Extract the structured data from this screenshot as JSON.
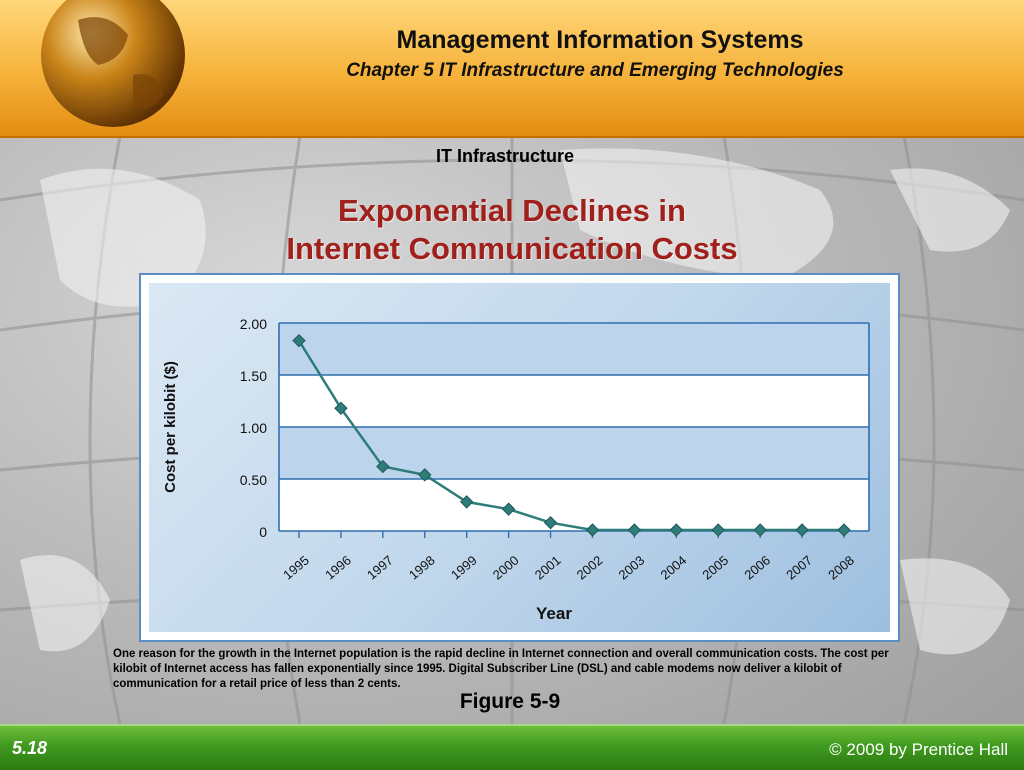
{
  "header": {
    "title": "Management Information Systems",
    "subtitle": "Chapter 5 IT Infrastructure and Emerging Technologies"
  },
  "section_label": "IT Infrastructure",
  "slide_title_line1": "Exponential Declines in",
  "slide_title_line2": "Internet Communication Costs",
  "caption": "One reason for the growth in the Internet population is the rapid decline in Internet connection and overall communication costs. The cost per kilobit of Internet access has fallen exponentially since 1995. Digital Subscriber Line (DSL) and cable modems now deliver a kilobit of communication for a retail price of less than 2 cents.",
  "figure_label": "Figure 5-9",
  "footer": {
    "slide_number": "5.18",
    "copyright": "© 2009 by Prentice Hall"
  },
  "colors": {
    "title_red": "#a0201c",
    "series": "#2e7d7a",
    "header_orange": "#f6b23a",
    "footer_green": "#3f9a1f"
  },
  "chart_data": {
    "type": "line",
    "xlabel": "Year",
    "ylabel": "Cost per kilobit ($)",
    "categories": [
      "1995",
      "1996",
      "1997",
      "1998",
      "1999",
      "2000",
      "2001",
      "2002",
      "2003",
      "2004",
      "2005",
      "2006",
      "2007",
      "2008"
    ],
    "y_ticks": [
      "2.00",
      "1.50",
      "1.00",
      "0.50",
      "0"
    ],
    "ylim": [
      0,
      2
    ],
    "grid": "horizontal bands",
    "series": [
      {
        "values": [
          1.83,
          1.18,
          0.62,
          0.54,
          0.28,
          0.21,
          0.08,
          0.01,
          0.01,
          0.01,
          0.01,
          0.01,
          0.01,
          0.01
        ]
      }
    ]
  }
}
